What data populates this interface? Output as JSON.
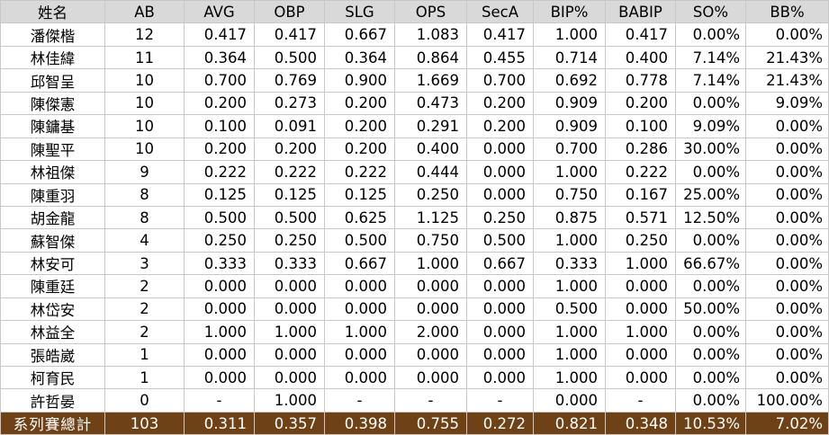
{
  "headers": [
    "姓名",
    "AB",
    "AVG",
    "OBP",
    "SLG",
    "OPS",
    "SecA",
    "BIP%",
    "BABIP",
    "SO%",
    "BB%"
  ],
  "rows": [
    [
      "潘傑楷",
      "12",
      "0.417",
      "0.417",
      "0.667",
      "1.083",
      "0.417",
      "1.000",
      "0.417",
      "0.00%",
      "0.00%"
    ],
    [
      "林佳緯",
      "11",
      "0.364",
      "0.500",
      "0.364",
      "0.864",
      "0.455",
      "0.714",
      "0.400",
      "7.14%",
      "21.43%"
    ],
    [
      "邱智呈",
      "10",
      "0.700",
      "0.769",
      "0.900",
      "1.669",
      "0.700",
      "0.692",
      "0.778",
      "7.14%",
      "21.43%"
    ],
    [
      "陳傑憲",
      "10",
      "0.200",
      "0.273",
      "0.200",
      "0.473",
      "0.200",
      "0.909",
      "0.200",
      "0.00%",
      "9.09%"
    ],
    [
      "陳鏞基",
      "10",
      "0.100",
      "0.091",
      "0.200",
      "0.291",
      "0.200",
      "0.909",
      "0.100",
      "9.09%",
      "0.00%"
    ],
    [
      "陳聖平",
      "10",
      "0.200",
      "0.200",
      "0.200",
      "0.400",
      "0.000",
      "0.700",
      "0.286",
      "30.00%",
      "0.00%"
    ],
    [
      "林祖傑",
      "9",
      "0.222",
      "0.222",
      "0.222",
      "0.444",
      "0.000",
      "1.000",
      "0.222",
      "0.00%",
      "0.00%"
    ],
    [
      "陳重羽",
      "8",
      "0.125",
      "0.125",
      "0.125",
      "0.250",
      "0.000",
      "0.750",
      "0.167",
      "25.00%",
      "0.00%"
    ],
    [
      "胡金龍",
      "8",
      "0.500",
      "0.500",
      "0.625",
      "1.125",
      "0.250",
      "0.875",
      "0.571",
      "12.50%",
      "0.00%"
    ],
    [
      "蘇智傑",
      "4",
      "0.250",
      "0.250",
      "0.500",
      "0.750",
      "0.500",
      "1.000",
      "0.250",
      "0.00%",
      "0.00%"
    ],
    [
      "林安可",
      "3",
      "0.333",
      "0.333",
      "0.667",
      "1.000",
      "0.667",
      "0.333",
      "1.000",
      "66.67%",
      "0.00%"
    ],
    [
      "陳重廷",
      "2",
      "0.000",
      "0.000",
      "0.000",
      "0.000",
      "0.000",
      "1.000",
      "0.000",
      "0.00%",
      "0.00%"
    ],
    [
      "林岱安",
      "2",
      "0.000",
      "0.000",
      "0.000",
      "0.000",
      "0.000",
      "0.500",
      "0.000",
      "50.00%",
      "0.00%"
    ],
    [
      "林益全",
      "2",
      "1.000",
      "1.000",
      "1.000",
      "2.000",
      "0.000",
      "1.000",
      "1.000",
      "0.00%",
      "0.00%"
    ],
    [
      "張皓崴",
      "1",
      "0.000",
      "0.000",
      "0.000",
      "0.000",
      "0.000",
      "1.000",
      "0.000",
      "0.00%",
      "0.00%"
    ],
    [
      "柯育民",
      "1",
      "0.000",
      "0.000",
      "0.000",
      "0.000",
      "0.000",
      "1.000",
      "0.000",
      "0.00%",
      "0.00%"
    ],
    [
      "許哲晏",
      "0",
      "-",
      "1.000",
      "-",
      "-",
      "-",
      "0.000",
      "-",
      "0.00%",
      "100.00%"
    ]
  ],
  "totals": [
    "系列賽總計",
    "103",
    "0.311",
    "0.357",
    "0.398",
    "0.755",
    "0.272",
    "0.821",
    "0.348",
    "10.53%",
    "7.02%"
  ],
  "colors": {
    "header_bg": "#d9d9d9",
    "total_bg": "#6e4216",
    "total_text": "#ffffff",
    "grid": "#c8c8c8"
  }
}
